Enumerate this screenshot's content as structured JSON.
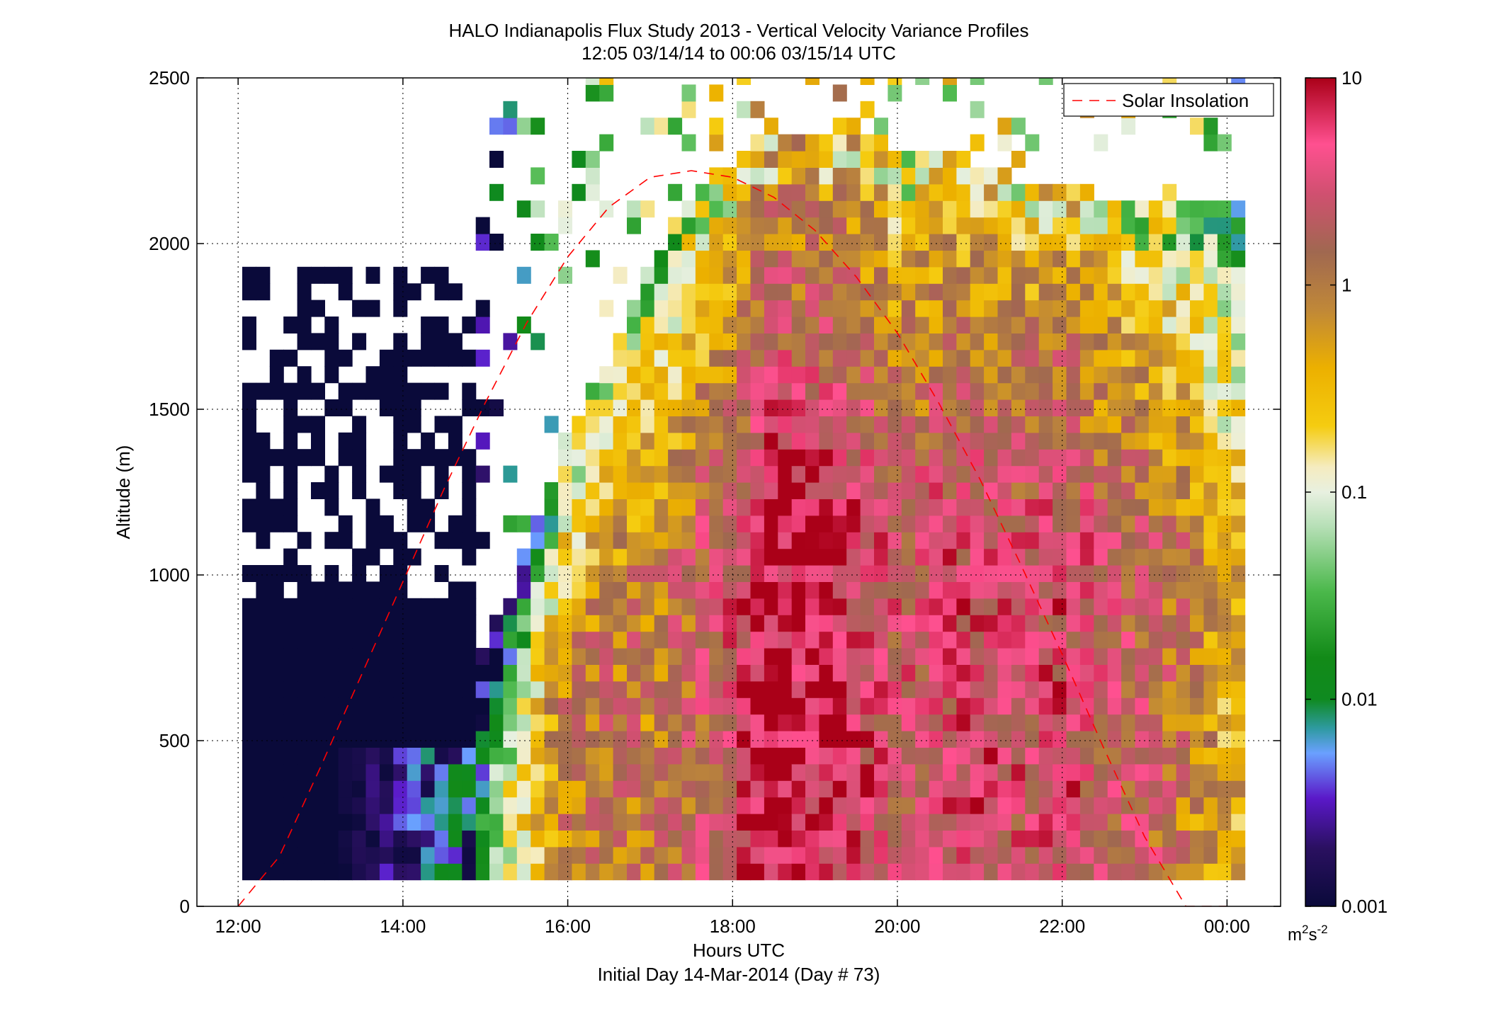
{
  "figure": {
    "title_line1": "HALO Indianapolis Flux Study 2013 - Vertical Velocity Variance Profiles",
    "title_line2": "12:05 03/14/14 to 00:06 03/15/14  UTC",
    "footer": "Initial Day 14-Mar-2014 (Day # 73)"
  },
  "chart_data": {
    "type": "heatmap",
    "xlabel": "Hours UTC",
    "ylabel": "Altitude (m)",
    "xlim": [
      11.5,
      24.65
    ],
    "ylim": [
      0,
      2500
    ],
    "x_ticks": [
      12,
      14,
      16,
      18,
      20,
      22,
      24
    ],
    "x_tick_labels": [
      "12:00",
      "14:00",
      "16:00",
      "18:00",
      "20:00",
      "22:00",
      "00:00"
    ],
    "y_ticks": [
      0,
      500,
      1000,
      1500,
      2000,
      2500
    ],
    "y_tick_labels": [
      "0",
      "500",
      "1000",
      "1500",
      "2000",
      "2500"
    ],
    "grid": true,
    "legend": {
      "placement": "top-right",
      "entries": [
        "Solar Insolation"
      ]
    },
    "solar_insolation": {
      "style": "red dashed",
      "x_hours": [
        12.0,
        12.5,
        13.0,
        13.5,
        14.0,
        14.5,
        15.0,
        15.5,
        16.0,
        16.5,
        17.0,
        17.5,
        18.0,
        18.5,
        19.0,
        19.5,
        20.0,
        20.5,
        21.0,
        21.5,
        22.0,
        22.5,
        23.0,
        23.5,
        24.0
      ],
      "y_altitude_m": [
        0,
        150,
        420,
        700,
        980,
        1260,
        1520,
        1760,
        1960,
        2110,
        2200,
        2220,
        2200,
        2140,
        2040,
        1900,
        1730,
        1520,
        1290,
        1030,
        760,
        480,
        210,
        0,
        0
      ]
    },
    "colorbar": {
      "scale": "log",
      "range": [
        0.001,
        10
      ],
      "ticks": [
        0.001,
        0.01,
        0.1,
        1,
        10
      ],
      "tick_labels": [
        "0.001",
        "0.01",
        "0.1",
        "1",
        "10"
      ],
      "units_base": "m",
      "units_exp1": "2",
      "units_mid": "s",
      "units_exp2": "-2"
    },
    "time_bins_hours": [
      12.05,
      24.1
    ],
    "altitude_bins_m": [
      80,
      2500
    ],
    "variance_log10_profile": {
      "hours": [
        12.0,
        14.0,
        15.0,
        15.5,
        16.0,
        16.5,
        17.0,
        17.5,
        18.0,
        18.5,
        19.0,
        19.5,
        20.0,
        20.5,
        21.0,
        21.5,
        22.0,
        22.5,
        23.0,
        23.5,
        24.0
      ],
      "low_level": [
        -3.0,
        -3.0,
        -1.6,
        -0.6,
        0.0,
        0.1,
        0.0,
        0.2,
        0.5,
        0.9,
        0.8,
        0.7,
        0.4,
        0.5,
        0.6,
        0.5,
        0.6,
        0.4,
        0.3,
        0.0,
        -0.4
      ],
      "top_m": [
        0,
        0,
        600,
        900,
        1300,
        1500,
        1800,
        2000,
        2100,
        2200,
        2200,
        2200,
        2150,
        2150,
        2100,
        2050,
        2050,
        2000,
        2000,
        2000,
        2000
      ]
    }
  }
}
